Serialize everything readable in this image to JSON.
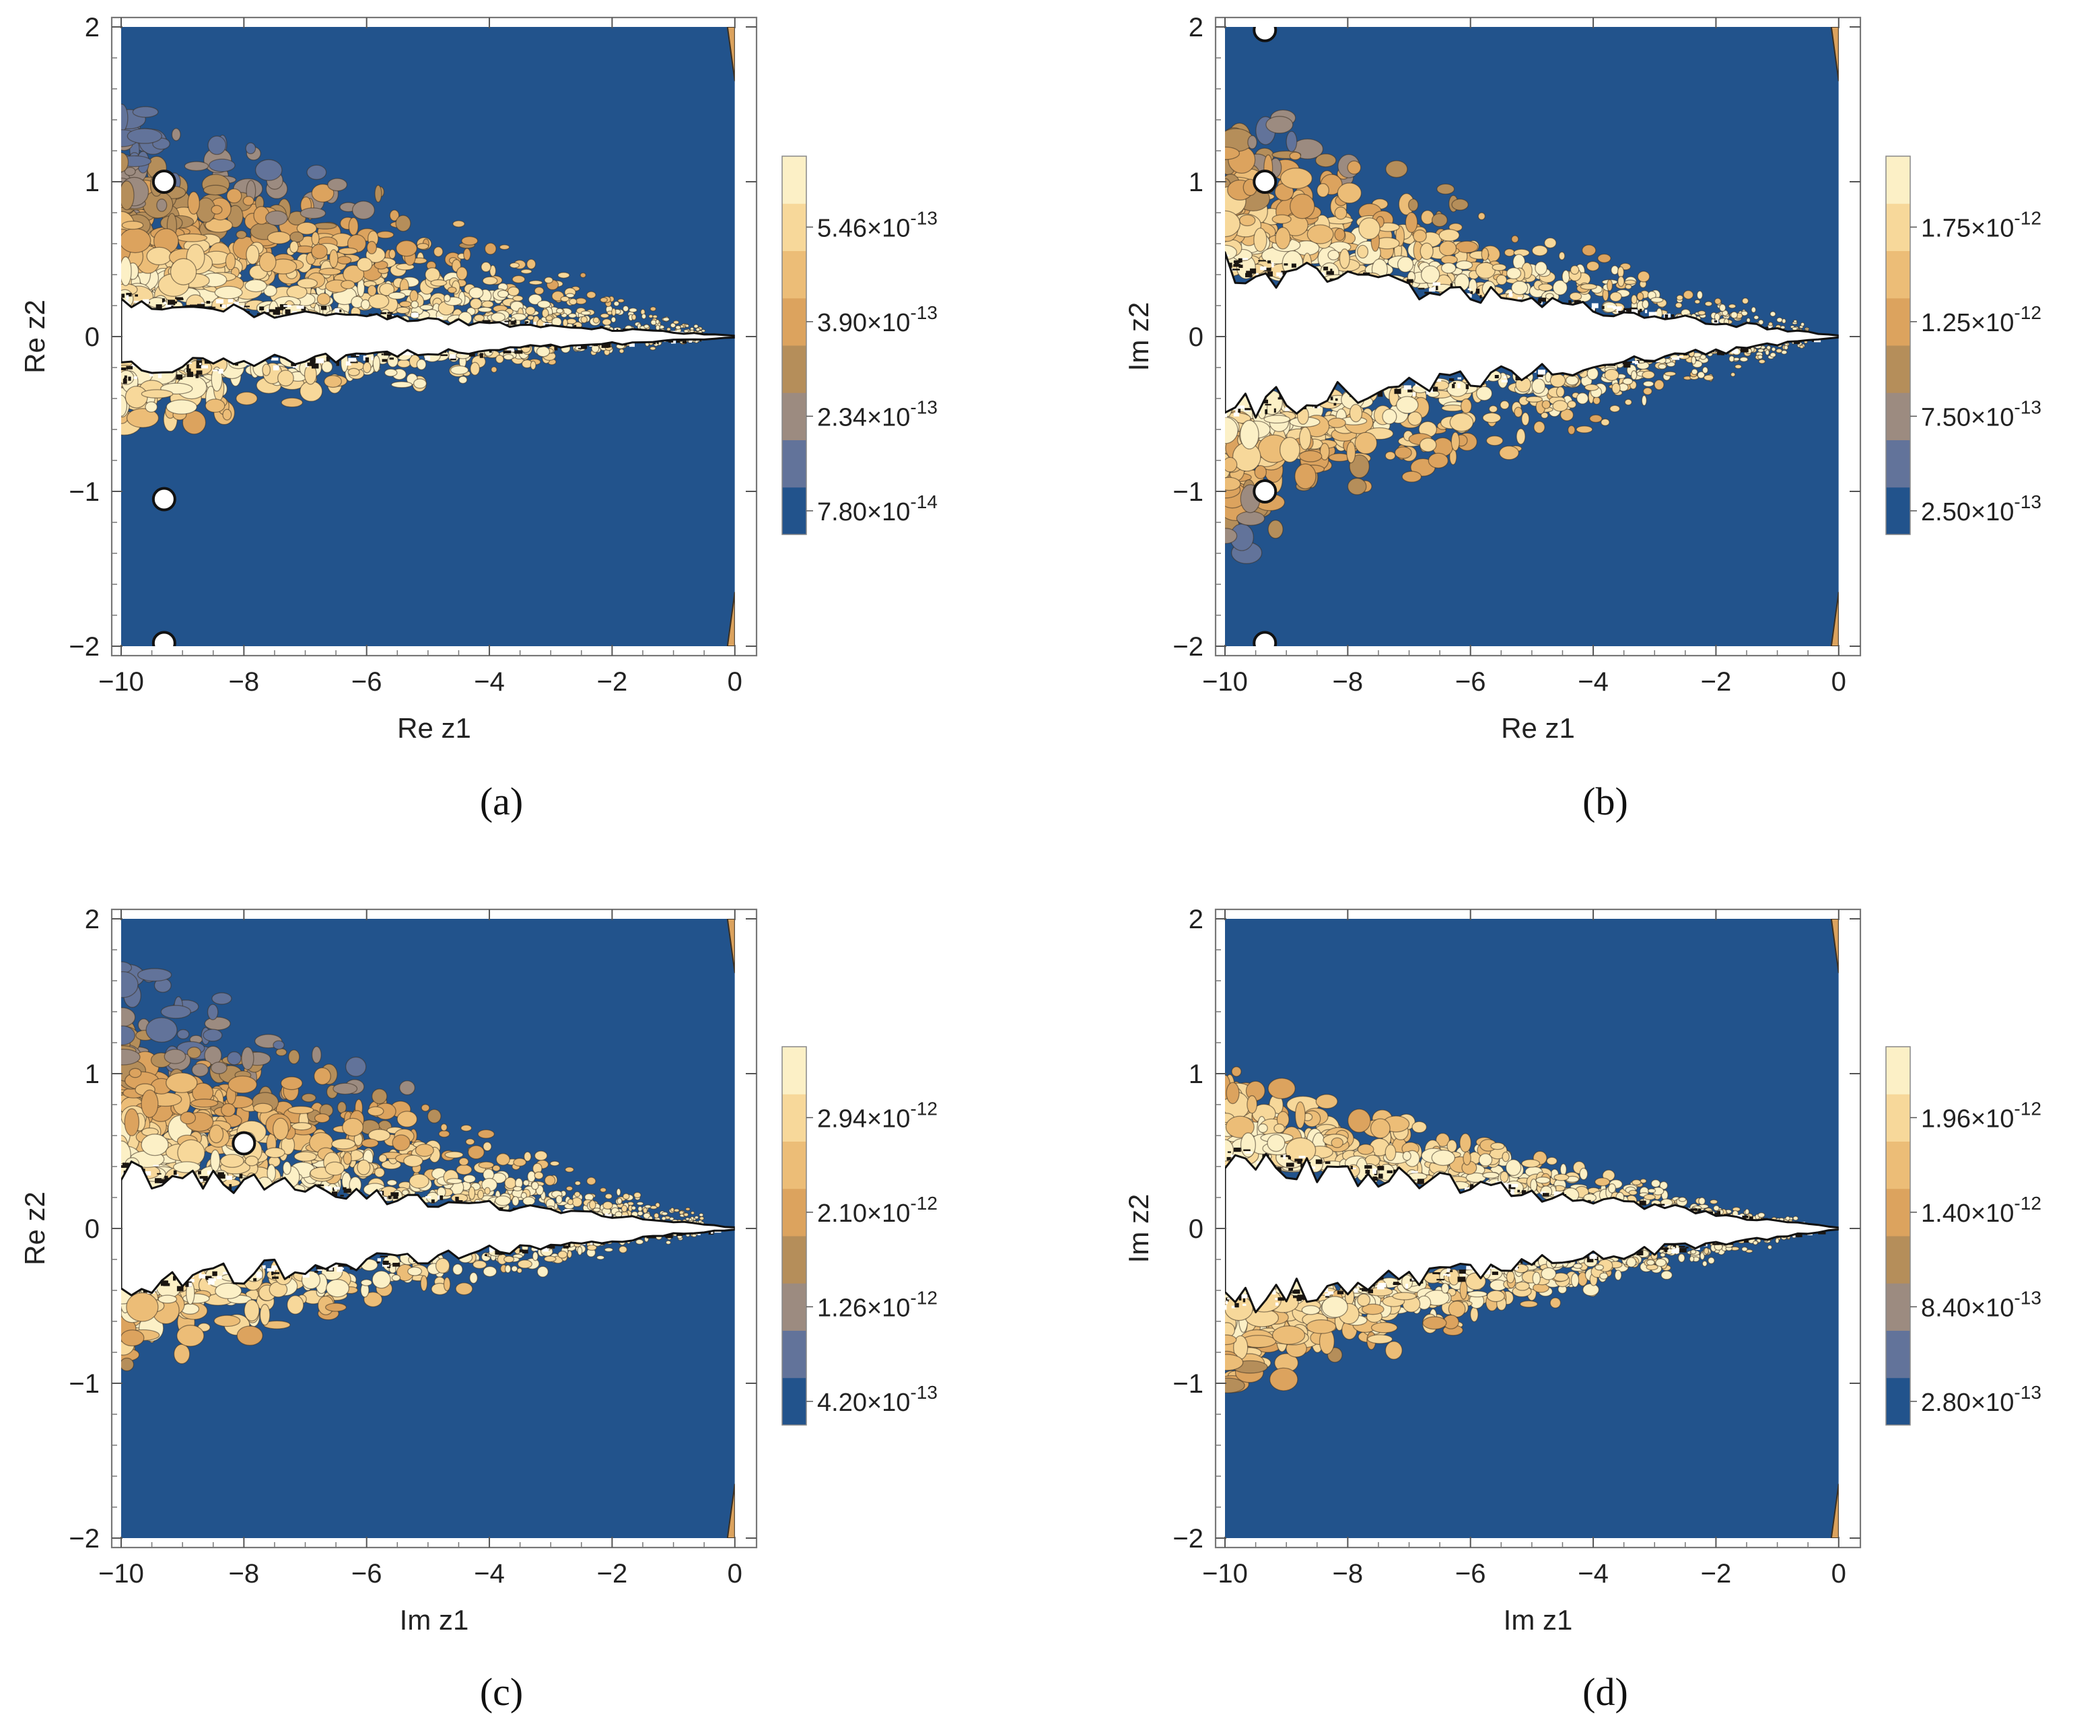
{
  "chart_data": [
    {
      "type": "contour",
      "panel_label": "(a)",
      "xlabel": "Re z1",
      "ylabel": "Re z2",
      "xlim": [
        -10,
        0.2
      ],
      "ylim": [
        -2,
        2
      ],
      "x_ticks": [
        -10,
        -8,
        -6,
        -4,
        -2,
        0
      ],
      "y_ticks": [
        -2,
        -1,
        0,
        1,
        2
      ],
      "colorbar_labels": [
        "5.46×10^-13",
        "3.90×10^-13",
        "2.34×10^-13",
        "7.80×10^-14"
      ],
      "colorbar_values": [
        5.46e-13,
        3.9e-13,
        2.34e-13,
        7.8e-14
      ],
      "features": {
        "wedge_halfwidth_at_x_min": 0.2,
        "upper_band_extent": 1.0,
        "lower_band_extent": 0.35,
        "holes": [
          [
            -9.3,
            1.0
          ],
          [
            -9.3,
            -1.05
          ],
          [
            -9.3,
            -1.98
          ]
        ]
      }
    },
    {
      "type": "contour",
      "panel_label": "(b)",
      "xlabel": "Re z1",
      "ylabel": "Im z2",
      "xlim": [
        -10,
        0.2
      ],
      "ylim": [
        -2,
        2
      ],
      "x_ticks": [
        -10,
        -8,
        -6,
        -4,
        -2,
        0
      ],
      "y_ticks": [
        -2,
        -1,
        0,
        1,
        2
      ],
      "colorbar_labels": [
        "1.75×10^-12",
        "1.25×10^-12",
        "7.50×10^-13",
        "2.50×10^-13"
      ],
      "colorbar_values": [
        1.75e-12,
        1.25e-12,
        7.5e-13,
        2.5e-13
      ],
      "features": {
        "wedge_halfwidth_at_x_min": 0.45,
        "upper_band_extent": 0.75,
        "lower_band_extent": 0.7,
        "holes": [
          [
            -9.35,
            1.0
          ],
          [
            -9.35,
            -1.0
          ],
          [
            -9.35,
            -1.98
          ],
          [
            -9.35,
            1.98
          ]
        ]
      }
    },
    {
      "type": "contour",
      "panel_label": "(c)",
      "xlabel": "Im z1",
      "ylabel": "Re z2",
      "xlim": [
        -10,
        0.2
      ],
      "ylim": [
        -2,
        2
      ],
      "x_ticks": [
        -10,
        -8,
        -6,
        -4,
        -2,
        0
      ],
      "y_ticks": [
        -2,
        -1,
        0,
        1,
        2
      ],
      "colorbar_labels": [
        "2.94×10^-12",
        "2.10×10^-12",
        "1.26×10^-12",
        "4.20×10^-13"
      ],
      "colorbar_values": [
        2.94e-12,
        2.1e-12,
        1.26e-12,
        4.2e-13
      ],
      "features": {
        "wedge_halfwidth_at_x_min": 0.35,
        "upper_band_extent": 1.0,
        "lower_band_extent": 0.4,
        "holes": [
          [
            -8.0,
            0.55
          ]
        ]
      }
    },
    {
      "type": "contour",
      "panel_label": "(d)",
      "xlabel": "Im z1",
      "ylabel": "Im z2",
      "xlim": [
        -10,
        0.2
      ],
      "ylim": [
        -2,
        2
      ],
      "x_ticks": [
        -10,
        -8,
        -6,
        -4,
        -2,
        0
      ],
      "y_ticks": [
        -2,
        -1,
        0,
        1,
        2
      ],
      "colorbar_labels": [
        "1.96×10^-12",
        "1.40×10^-12",
        "8.40×10^-13",
        "2.80×10^-13"
      ],
      "colorbar_values": [
        1.96e-12,
        1.4e-12,
        8.4e-13,
        2.8e-13
      ],
      "features": {
        "wedge_halfwidth_at_x_min": 0.45,
        "upper_band_extent": 0.4,
        "lower_band_extent": 0.45,
        "holes": []
      }
    }
  ],
  "palette": {
    "blue": "#22538c",
    "slate": "#62739a",
    "taupe": "#9c8b80",
    "bronze": "#b58e5a",
    "amber": "#dca35e",
    "tan": "#ecbd77",
    "cream": "#f7d89a",
    "pale": "#fcf0c6",
    "edge": "#3a2f22"
  }
}
